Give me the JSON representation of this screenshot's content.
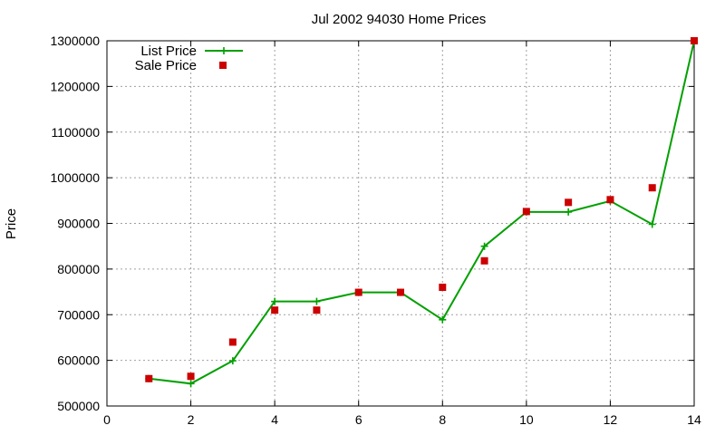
{
  "chart_data": {
    "type": "line",
    "title": "Jul 2002 94030 Home Prices",
    "xlabel": "",
    "ylabel": "Price",
    "xlim": [
      0,
      14
    ],
    "ylim": [
      500000,
      1300000
    ],
    "xticks": [
      0,
      2,
      4,
      6,
      8,
      10,
      12,
      14
    ],
    "yticks": [
      500000,
      600000,
      700000,
      800000,
      900000,
      1000000,
      1100000,
      1200000,
      1300000
    ],
    "grid": true,
    "legend_position": "top-left",
    "series": [
      {
        "name": "List Price",
        "kind": "line-with-plus-markers",
        "color": "#00a000",
        "x": [
          1,
          2,
          3,
          4,
          5,
          6,
          7,
          8,
          9,
          10,
          11,
          12,
          13,
          14
        ],
        "y": [
          560000,
          549000,
          599000,
          729000,
          729000,
          749000,
          749000,
          689000,
          850000,
          925000,
          925000,
          949000,
          898000,
          1300000
        ]
      },
      {
        "name": "Sale Price",
        "kind": "points-square",
        "color": "#cc0000",
        "x": [
          1,
          2,
          3,
          4,
          5,
          6,
          7,
          8,
          9,
          10,
          11,
          12,
          13,
          14
        ],
        "y": [
          560000,
          565000,
          640000,
          710000,
          710000,
          749000,
          749000,
          760000,
          818000,
          926000,
          946000,
          952000,
          978000,
          1300000
        ]
      }
    ]
  }
}
